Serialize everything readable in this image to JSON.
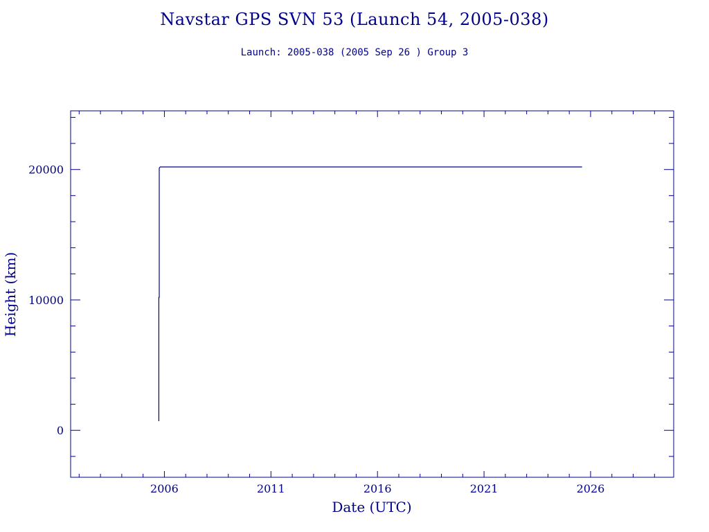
{
  "chart_data": {
    "type": "line",
    "title": "Navstar GPS SVN 53 (Launch 54, 2005-038)",
    "subtitle": "Launch: 2005-038  (2005 Sep 26 )  Group 3",
    "xlabel": "Date (UTC)",
    "ylabel": "Height (km)",
    "xlim": [
      2001.6,
      2029.9
    ],
    "ylim": [
      -3600,
      24500
    ],
    "x_ticks": [
      2006,
      2011,
      2016,
      2021,
      2026
    ],
    "y_ticks": [
      0,
      10000,
      20000
    ],
    "grid": false,
    "series": [
      {
        "x": [
          2005.74,
          2005.74,
          2005.76,
          2005.76,
          2005.8,
          2025.6
        ],
        "y": [
          700,
          10200,
          10200,
          20100,
          20200,
          20200
        ]
      }
    ]
  },
  "colors": {
    "axis": "#00008b",
    "line": "#00008b"
  }
}
